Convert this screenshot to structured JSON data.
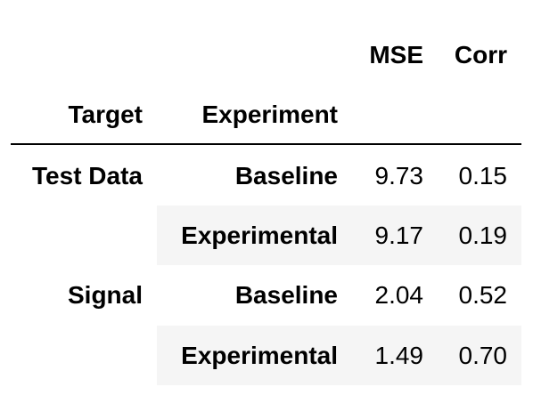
{
  "table": {
    "header": {
      "metric_columns": [
        "MSE",
        "Corr"
      ],
      "index_names": [
        "Target",
        "Experiment"
      ]
    },
    "rows": [
      {
        "target": "Test Data",
        "experiment": "Baseline",
        "mse": "9.73",
        "corr": "0.15"
      },
      {
        "target": "",
        "experiment": "Experimental",
        "mse": "9.17",
        "corr": "0.19"
      },
      {
        "target": "Signal",
        "experiment": "Baseline",
        "mse": "2.04",
        "corr": "0.52"
      },
      {
        "target": "",
        "experiment": "Experimental",
        "mse": "1.49",
        "corr": "0.70"
      }
    ]
  },
  "chart_data": {
    "type": "table",
    "columns": [
      "Target",
      "Experiment",
      "MSE",
      "Corr"
    ],
    "rows": [
      [
        "Test Data",
        "Baseline",
        9.73,
        0.15
      ],
      [
        "Test Data",
        "Experimental",
        9.17,
        0.19
      ],
      [
        "Signal",
        "Baseline",
        2.04,
        0.52
      ],
      [
        "Signal",
        "Experimental",
        1.49,
        0.7
      ]
    ]
  }
}
